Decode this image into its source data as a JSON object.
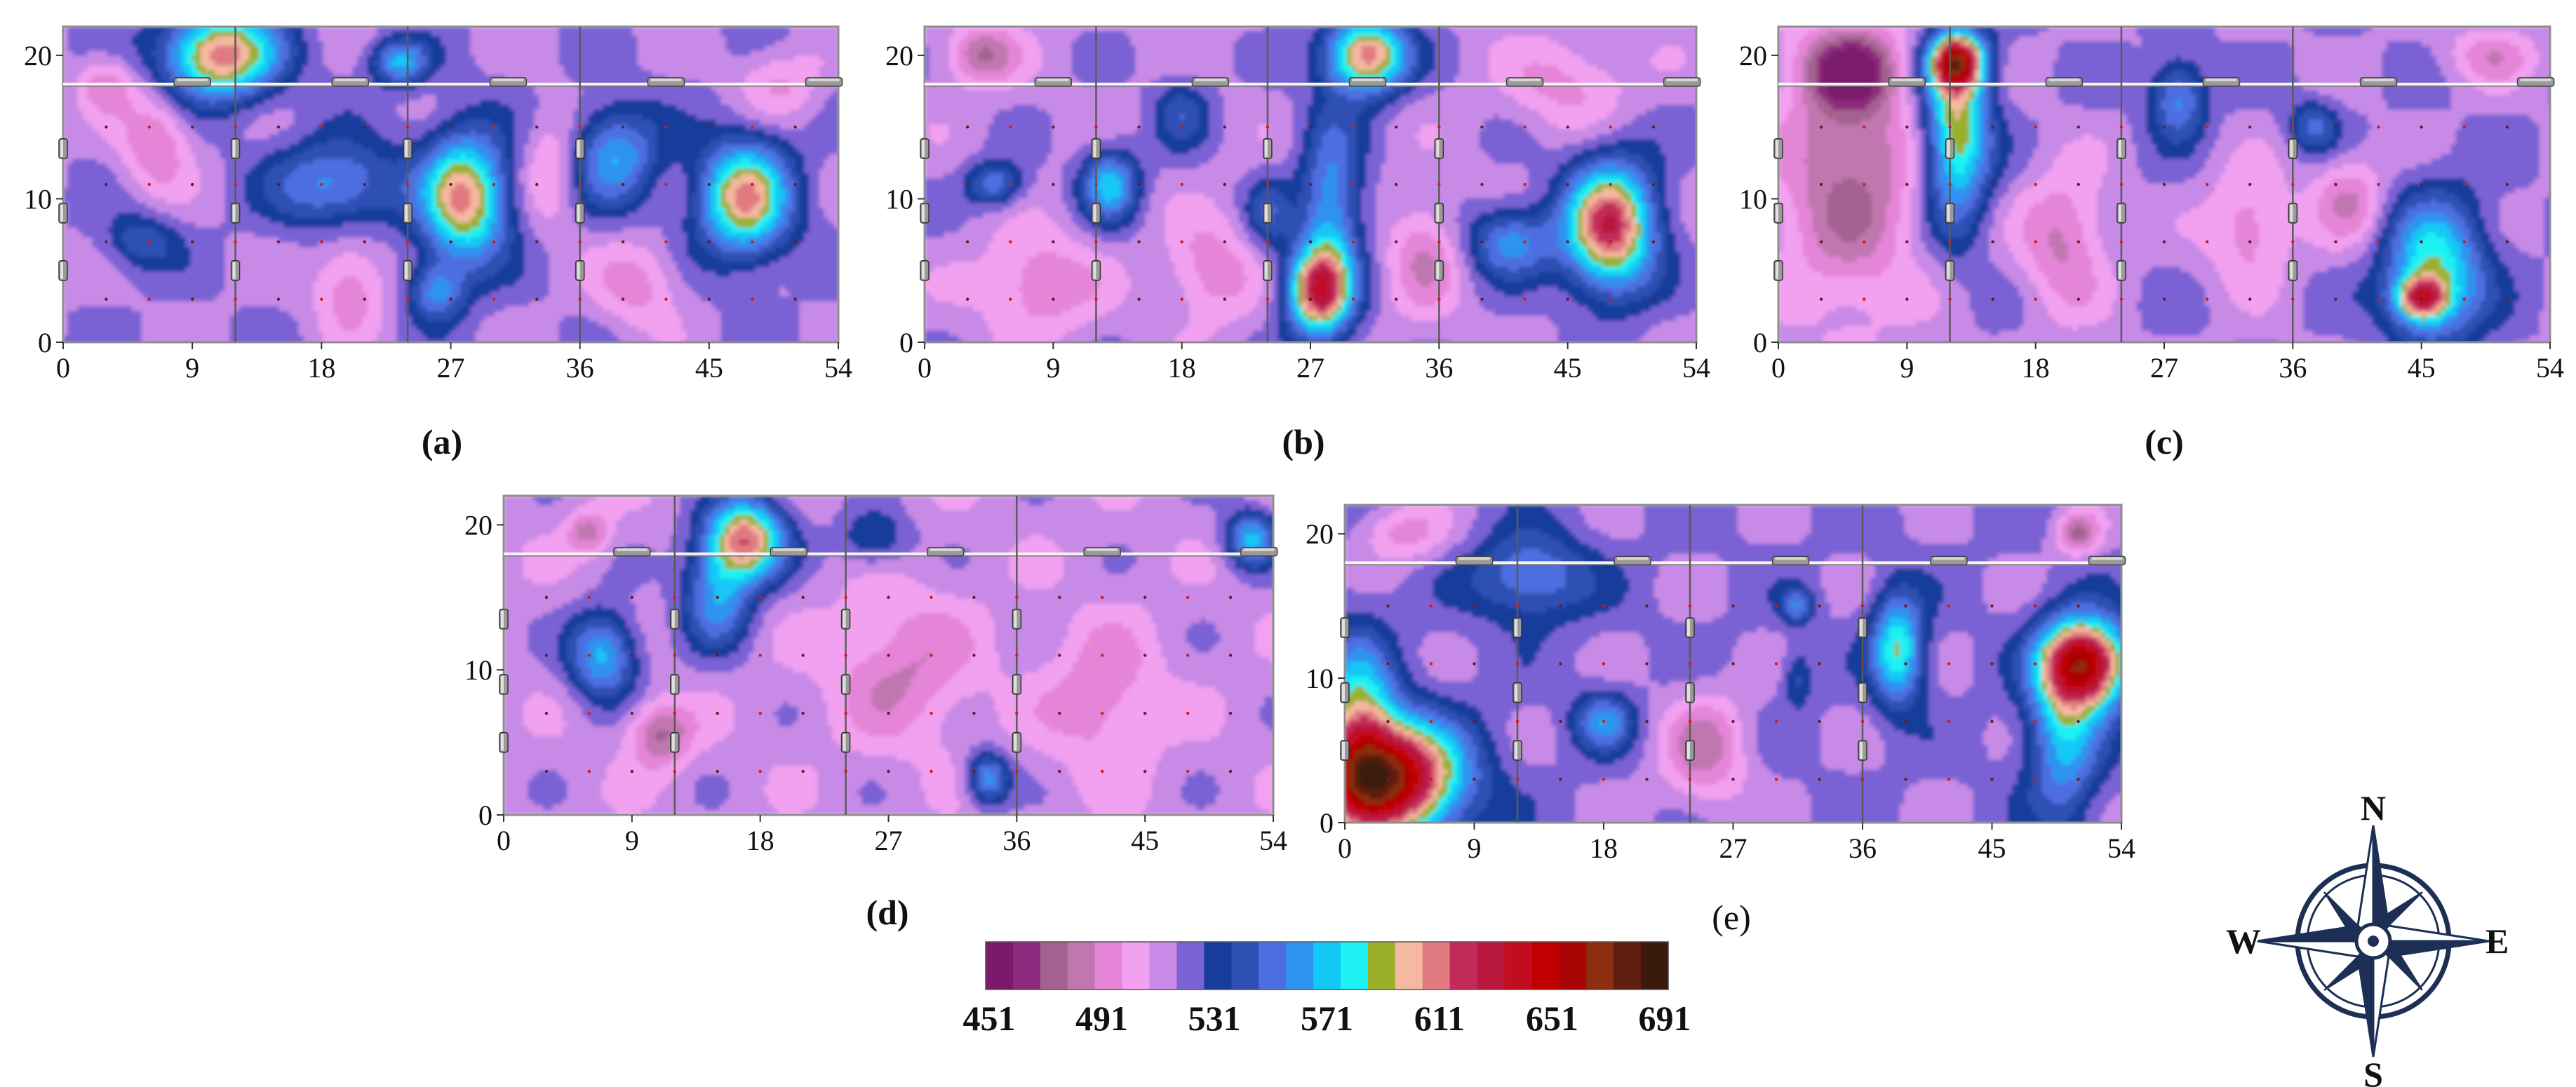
{
  "figure": {
    "compass": {
      "north": "N",
      "east": "E",
      "south": "S",
      "west": "W"
    },
    "colorbar": {
      "colors": [
        "#7a1a6b",
        "#8e2a7e",
        "#a3628f",
        "#c077b0",
        "#e585d8",
        "#f2a0f0",
        "#c78ae6",
        "#7a62d4",
        "#173c9c",
        "#2d4fb3",
        "#4d6ee0",
        "#2f93f0",
        "#12c8f5",
        "#1ef2f2",
        "#9ab02a",
        "#f5b8a0",
        "#e07a80",
        "#c22a5a",
        "#b8183c",
        "#c20d20",
        "#c00000",
        "#a80505",
        "#8c2e10",
        "#5f1e0e",
        "#3a1a0c"
      ],
      "tick_labels": [
        "451",
        "491",
        "531",
        "571",
        "611",
        "651",
        "691"
      ]
    }
  },
  "chart_data": [
    {
      "panel": "(a)",
      "type": "heatmap",
      "x_ticks": [
        "0",
        "9",
        "18",
        "27",
        "36",
        "45",
        "54"
      ],
      "y_ticks": [
        "0",
        "10",
        "20"
      ],
      "xlim": [
        0,
        54
      ],
      "ylim": [
        0,
        22
      ],
      "z_range": [
        451,
        700
      ],
      "background": 520,
      "anomalies": [
        {
          "x": 11,
          "y": 20,
          "peak": 618,
          "rx": 4.0,
          "ry": 3.0
        },
        {
          "x": 23.5,
          "y": 19.5,
          "peak": 572,
          "rx": 2.0,
          "ry": 1.6
        },
        {
          "x": 19,
          "y": 11,
          "peak": 567,
          "rx": 4.5,
          "ry": 3.0
        },
        {
          "x": 28,
          "y": 10,
          "peak": 612,
          "rx": 3.0,
          "ry": 4.5
        },
        {
          "x": 38.5,
          "y": 13,
          "peak": 570,
          "rx": 3.0,
          "ry": 3.5
        },
        {
          "x": 47.5,
          "y": 10,
          "peak": 610,
          "rx": 3.2,
          "ry": 4.0
        },
        {
          "x": 5.5,
          "y": 7,
          "peak": 550,
          "rx": 2.5,
          "ry": 2.0
        },
        {
          "x": 26,
          "y": 3.5,
          "peak": 562,
          "rx": 2.0,
          "ry": 2.0
        },
        {
          "x": 6.5,
          "y": 14,
          "peak": 490,
          "rx": 2.5,
          "ry": 3.5
        },
        {
          "x": 20,
          "y": 4,
          "peak": 492,
          "rx": 2.5,
          "ry": 3.5
        },
        {
          "x": 40,
          "y": 4,
          "peak": 495,
          "rx": 3.0,
          "ry": 3.0
        },
        {
          "x": 34,
          "y": 12,
          "peak": 498,
          "rx": 2.0,
          "ry": 4.0
        },
        {
          "x": 50,
          "y": 18,
          "peak": 500,
          "rx": 3.0,
          "ry": 2.5
        },
        {
          "x": 3,
          "y": 18,
          "peak": 495,
          "rx": 2.0,
          "ry": 2.0
        }
      ]
    },
    {
      "panel": "(b)",
      "type": "heatmap",
      "x_ticks": [
        "0",
        "9",
        "18",
        "27",
        "36",
        "45",
        "54"
      ],
      "y_ticks": [
        "0",
        "10",
        "20"
      ],
      "xlim": [
        0,
        54
      ],
      "ylim": [
        0,
        22
      ],
      "z_range": [
        451,
        700
      ],
      "background": 518,
      "anomalies": [
        {
          "x": 31,
          "y": 20,
          "peak": 620,
          "rx": 2.8,
          "ry": 2.6
        },
        {
          "x": 28.5,
          "y": 9,
          "peak": 570,
          "rx": 2.2,
          "ry": 7.0
        },
        {
          "x": 27.5,
          "y": 3.5,
          "peak": 618,
          "rx": 2.2,
          "ry": 3.0
        },
        {
          "x": 13,
          "y": 11,
          "peak": 575,
          "rx": 2.0,
          "ry": 2.5
        },
        {
          "x": 5,
          "y": 11,
          "peak": 558,
          "rx": 2.0,
          "ry": 1.6
        },
        {
          "x": 48,
          "y": 8,
          "peak": 628,
          "rx": 3.2,
          "ry": 4.5
        },
        {
          "x": 41,
          "y": 7,
          "peak": 565,
          "rx": 3.0,
          "ry": 2.5
        },
        {
          "x": 18,
          "y": 16,
          "peak": 545,
          "rx": 2.0,
          "ry": 2.5
        },
        {
          "x": 24,
          "y": 9,
          "peak": 545,
          "rx": 1.5,
          "ry": 2.5
        },
        {
          "x": 4,
          "y": 20,
          "peak": 480,
          "rx": 2.5,
          "ry": 2.0
        },
        {
          "x": 8,
          "y": 4,
          "peak": 490,
          "rx": 4.0,
          "ry": 3.5
        },
        {
          "x": 20,
          "y": 5,
          "peak": 492,
          "rx": 3.0,
          "ry": 3.5
        },
        {
          "x": 35,
          "y": 6,
          "peak": 492,
          "rx": 2.5,
          "ry": 4.0
        },
        {
          "x": 45,
          "y": 18,
          "peak": 496,
          "rx": 4.0,
          "ry": 3.0
        }
      ]
    },
    {
      "panel": "(c)",
      "type": "heatmap",
      "x_ticks": [
        "0",
        "9",
        "18",
        "27",
        "36",
        "45",
        "54"
      ],
      "y_ticks": [
        "0",
        "10",
        "20"
      ],
      "xlim": [
        0,
        54
      ],
      "ylim": [
        0,
        22
      ],
      "z_range": [
        451,
        700
      ],
      "background": 520,
      "anomalies": [
        {
          "x": 12.5,
          "y": 15,
          "peak": 605,
          "rx": 2.3,
          "ry": 6.5
        },
        {
          "x": 12.5,
          "y": 19.5,
          "peak": 632,
          "rx": 1.8,
          "ry": 1.8
        },
        {
          "x": 46,
          "y": 5,
          "peak": 590,
          "rx": 3.5,
          "ry": 5.0
        },
        {
          "x": 45,
          "y": 3,
          "peak": 600,
          "rx": 1.8,
          "ry": 1.5
        },
        {
          "x": 28,
          "y": 17,
          "peak": 565,
          "rx": 2.0,
          "ry": 2.8
        },
        {
          "x": 37.5,
          "y": 15,
          "peak": 552,
          "rx": 1.8,
          "ry": 1.8
        },
        {
          "x": 5,
          "y": 12,
          "peak": 478,
          "rx": 5.0,
          "ry": 10.0
        },
        {
          "x": 5,
          "y": 19,
          "peak": 470,
          "rx": 3.0,
          "ry": 2.5
        },
        {
          "x": 20,
          "y": 7,
          "peak": 488,
          "rx": 3.0,
          "ry": 5.0
        },
        {
          "x": 33,
          "y": 8,
          "peak": 492,
          "rx": 3.0,
          "ry": 4.0
        },
        {
          "x": 40,
          "y": 10,
          "peak": 490,
          "rx": 2.5,
          "ry": 3.0
        },
        {
          "x": 50,
          "y": 20,
          "peak": 495,
          "rx": 3.0,
          "ry": 2.0
        }
      ]
    },
    {
      "panel": "(d)",
      "type": "heatmap",
      "x_ticks": [
        "0",
        "9",
        "18",
        "27",
        "36",
        "45",
        "54"
      ],
      "y_ticks": [
        "0",
        "10",
        "20"
      ],
      "xlim": [
        0,
        54
      ],
      "ylim": [
        0,
        22
      ],
      "z_range": [
        451,
        700
      ],
      "background": 515,
      "anomalies": [
        {
          "x": 17,
          "y": 19,
          "peak": 615,
          "rx": 2.8,
          "ry": 2.8
        },
        {
          "x": 15,
          "y": 15,
          "peak": 565,
          "rx": 2.5,
          "ry": 3.5
        },
        {
          "x": 7,
          "y": 11,
          "peak": 575,
          "rx": 2.4,
          "ry": 3.0
        },
        {
          "x": 52.5,
          "y": 19,
          "peak": 572,
          "rx": 1.8,
          "ry": 2.0
        },
        {
          "x": 34,
          "y": 2.5,
          "peak": 566,
          "rx": 1.5,
          "ry": 1.8
        },
        {
          "x": 26,
          "y": 19,
          "peak": 545,
          "rx": 2.5,
          "ry": 2.0
        },
        {
          "x": 11,
          "y": 5.5,
          "peak": 478,
          "rx": 2.2,
          "ry": 2.2
        },
        {
          "x": 6,
          "y": 19.5,
          "peak": 485,
          "rx": 1.5,
          "ry": 1.5
        },
        {
          "x": 28,
          "y": 10,
          "peak": 490,
          "rx": 5.0,
          "ry": 5.0
        },
        {
          "x": 42,
          "y": 8,
          "peak": 492,
          "rx": 4.0,
          "ry": 5.0
        }
      ]
    },
    {
      "panel": "(e)",
      "type": "heatmap",
      "x_ticks": [
        "0",
        "9",
        "18",
        "27",
        "36",
        "45",
        "54"
      ],
      "y_ticks": [
        "0",
        "10",
        "20"
      ],
      "xlim": [
        0,
        54
      ],
      "ylim": [
        0,
        22
      ],
      "z_range": [
        451,
        700
      ],
      "background": 522,
      "anomalies": [
        {
          "x": 3,
          "y": 3,
          "peak": 670,
          "rx": 5.0,
          "ry": 4.0
        },
        {
          "x": 1,
          "y": 7,
          "peak": 585,
          "rx": 2.5,
          "ry": 6.0
        },
        {
          "x": 51.5,
          "y": 11,
          "peak": 658,
          "rx": 3.0,
          "ry": 3.0
        },
        {
          "x": 50,
          "y": 6,
          "peak": 575,
          "rx": 2.5,
          "ry": 6.0
        },
        {
          "x": 38.5,
          "y": 12,
          "peak": 592,
          "rx": 1.8,
          "ry": 3.8
        },
        {
          "x": 13,
          "y": 17,
          "peak": 565,
          "rx": 4.0,
          "ry": 3.0
        },
        {
          "x": 18,
          "y": 7,
          "peak": 565,
          "rx": 2.0,
          "ry": 2.0
        },
        {
          "x": 31.5,
          "y": 15,
          "peak": 560,
          "rx": 1.2,
          "ry": 1.2
        },
        {
          "x": 31.5,
          "y": 10,
          "peak": 545,
          "rx": 1.0,
          "ry": 2.0
        },
        {
          "x": 51,
          "y": 20,
          "peak": 480,
          "rx": 1.5,
          "ry": 1.5
        },
        {
          "x": 25,
          "y": 5,
          "peak": 488,
          "rx": 3.0,
          "ry": 4.0
        },
        {
          "x": 4,
          "y": 20,
          "peak": 496,
          "rx": 3.0,
          "ry": 2.0
        }
      ]
    }
  ]
}
